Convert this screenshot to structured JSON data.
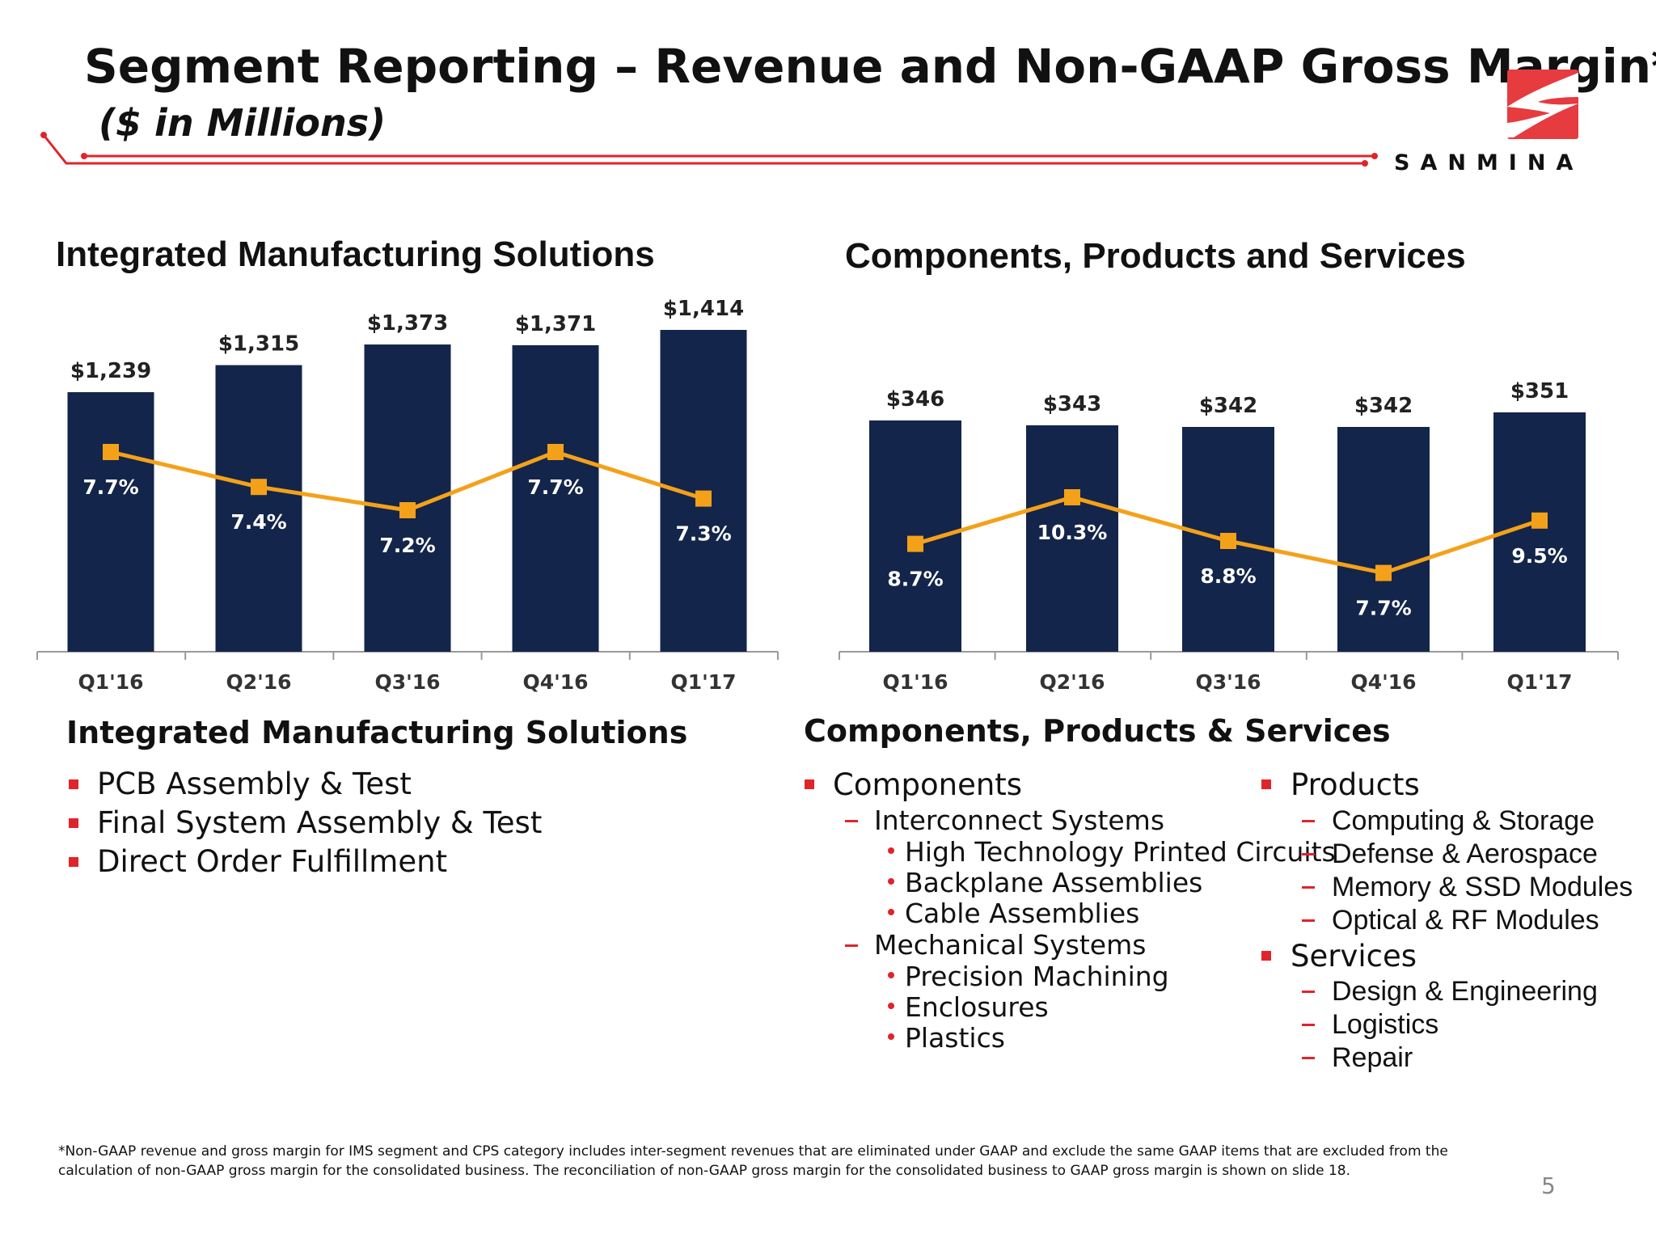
{
  "header": {
    "title": "Segment Reporting – Revenue and Non-GAAP Gross Margin*",
    "subtitle": "($ in Millions)",
    "logo_text": "SANMINA"
  },
  "colors": {
    "bar": "#13254a",
    "line": "#f4a11a",
    "accent": "#e0242b"
  },
  "chart_data": [
    {
      "type": "bar+line",
      "title": "Integrated Manufacturing Solutions",
      "categories": [
        "Q1'16",
        "Q2'16",
        "Q3'16",
        "Q4'16",
        "Q1'17"
      ],
      "series": [
        {
          "type": "bar",
          "values": [
            1239,
            1315,
            1373,
            1371,
            1414
          ],
          "labels": [
            "$1,239",
            "$1,315",
            "$1,373",
            "$1,371",
            "$1,414"
          ]
        },
        {
          "type": "line",
          "values": [
            7.7,
            7.4,
            7.2,
            7.7,
            7.3
          ],
          "labels": [
            "7.7%",
            "7.4%",
            "7.2%",
            "7.7%",
            "7.3%"
          ]
        }
      ],
      "grid": false
    },
    {
      "type": "bar+line",
      "title": "Components, Products and Services",
      "categories": [
        "Q1'16",
        "Q2'16",
        "Q3'16",
        "Q4'16",
        "Q1'17"
      ],
      "series": [
        {
          "type": "bar",
          "values": [
            346,
            343,
            342,
            342,
            351
          ],
          "labels": [
            "$346",
            "$343",
            "$342",
            "$342",
            "$351"
          ]
        },
        {
          "type": "line",
          "values": [
            8.7,
            10.3,
            8.8,
            7.7,
            9.5
          ],
          "labels": [
            "8.7%",
            "10.3%",
            "8.8%",
            "7.7%",
            "9.5%"
          ]
        }
      ],
      "grid": false
    }
  ],
  "ims": {
    "heading": "Integrated Manufacturing Solutions",
    "items": [
      "PCB Assembly & Test",
      "Final System Assembly & Test",
      "Direct Order Fulfillment"
    ]
  },
  "cps": {
    "heading": "Components, Products & Services",
    "components": {
      "label": "Components",
      "interconnect": "Interconnect Systems",
      "interconnect_items": [
        "High Technology Printed Circuits",
        "Backplane Assemblies",
        "Cable Assemblies"
      ],
      "mechanical": "Mechanical Systems",
      "mechanical_items": [
        "Precision Machining",
        "Enclosures",
        "Plastics"
      ]
    },
    "products": {
      "label": "Products",
      "items": [
        "Computing & Storage",
        "Defense & Aerospace",
        "Memory & SSD Modules",
        "Optical & RF Modules"
      ]
    },
    "services": {
      "label": "Services",
      "items": [
        "Design & Engineering",
        "Logistics",
        "Repair"
      ]
    }
  },
  "footnote": "*Non-GAAP revenue and gross margin for IMS segment and CPS category includes inter-segment revenues that are eliminated under GAAP and exclude the same GAAP items that are excluded from the calculation of non-GAAP gross margin for the consolidated business. The reconciliation of non-GAAP gross margin for the consolidated business to GAAP gross margin is shown on slide 18.",
  "page_number": "5"
}
